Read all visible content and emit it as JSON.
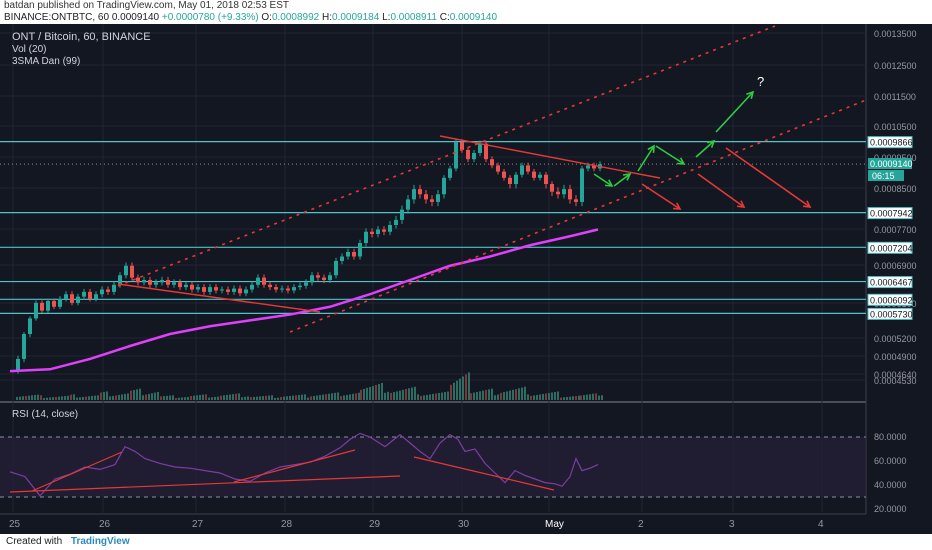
{
  "header": {
    "publisher_line": "batdan published on TradingView.com, May 01, 2018 02:53 EST",
    "symbol": "BINANCE:ONTBTC, 60",
    "last": "0.0009140",
    "change": "+0.0000780 (+9.33%)",
    "ohlc": {
      "o_label": "O:",
      "o": "0.0008992",
      "h_label": "H:",
      "h": "0.0009184",
      "l_label": "L:",
      "l": "0.0008911",
      "c_label": "C:",
      "c": "0.0009140"
    }
  },
  "legend": {
    "title": "ONT / Bitcoin, 60, BINANCE",
    "vol": "Vol (20)",
    "sma": "3SMA Dan (99)",
    "rsi": "RSI (14, close)"
  },
  "footer": {
    "created_with": "Created with",
    "brand": "TradingView"
  },
  "colors": {
    "background": "#131722",
    "up": "#26a69a",
    "down": "#ef5350",
    "sma": "#e040fb",
    "hline": "#4fc3c7",
    "rsi": "#7b3fa0",
    "trend": "#e53935",
    "green_arrow": "#2ecc40",
    "red_arrow": "#e53935"
  },
  "chart_data": {
    "type": "candlestick",
    "x_axis": {
      "ticks": [
        "25",
        "26",
        "27",
        "28",
        "29",
        "30",
        "May",
        "2",
        "3",
        "4"
      ]
    },
    "price_axis": {
      "ticks": [
        "0.0013500",
        "0.0012500",
        "0.0011500",
        "0.0010500",
        "0.0009500",
        "0.0008500",
        "0.0007700",
        "0.0006900",
        "0.0006100",
        "0.0005200",
        "0.0004900",
        "0.0004640",
        "0.0004530"
      ],
      "levels": [
        "0.0009866",
        "0.0007942",
        "0.0007204",
        "0.0006467",
        "0.0006092",
        "0.0005730"
      ],
      "last_price": "0.0009140",
      "countdown": "06:15"
    },
    "rsi_axis": {
      "ticks": [
        "80.0000",
        "60.0000",
        "40.0000",
        "20.0000"
      ]
    },
    "annotation": "?",
    "price_series": [
      [
        0,
        0.000462
      ],
      [
        6,
        0.00048
      ],
      [
        12,
        0.00052
      ],
      [
        18,
        0.00056
      ],
      [
        24,
        0.0006
      ],
      [
        30,
        0.00058
      ],
      [
        36,
        0.000605
      ],
      [
        42,
        0.00059
      ],
      [
        48,
        0.00061
      ],
      [
        54,
        0.00062
      ],
      [
        60,
        0.0006
      ],
      [
        66,
        0.000615
      ],
      [
        72,
        0.000625
      ],
      [
        78,
        0.00061
      ],
      [
        84,
        0.00062
      ],
      [
        90,
        0.00063
      ],
      [
        96,
        0.000625
      ],
      [
        102,
        0.00064
      ],
      [
        108,
        0.00066
      ],
      [
        114,
        0.00068
      ],
      [
        120,
        0.000655
      ],
      [
        126,
        0.000645
      ],
      [
        132,
        0.00065
      ],
      [
        138,
        0.00064
      ],
      [
        144,
        0.000645
      ],
      [
        150,
        0.00065
      ],
      [
        156,
        0.00064
      ],
      [
        162,
        0.000645
      ],
      [
        168,
        0.000635
      ],
      [
        174,
        0.00064
      ],
      [
        180,
        0.00063
      ],
      [
        186,
        0.000635
      ],
      [
        192,
        0.000625
      ],
      [
        198,
        0.000635
      ],
      [
        204,
        0.000628
      ],
      [
        210,
        0.00063
      ],
      [
        216,
        0.000625
      ],
      [
        222,
        0.000632
      ],
      [
        228,
        0.000622
      ],
      [
        234,
        0.00063
      ],
      [
        240,
        0.00064
      ],
      [
        246,
        0.000655
      ],
      [
        252,
        0.00064
      ],
      [
        258,
        0.000635
      ],
      [
        264,
        0.00063
      ],
      [
        270,
        0.000632
      ],
      [
        276,
        0.000628
      ],
      [
        282,
        0.000635
      ],
      [
        288,
        0.000638
      ],
      [
        294,
        0.000645
      ],
      [
        300,
        0.00066
      ],
      [
        306,
        0.000655
      ],
      [
        312,
        0.00065
      ],
      [
        318,
        0.00066
      ],
      [
        324,
        0.00069
      ],
      [
        330,
        0.0007
      ],
      [
        336,
        0.00071
      ],
      [
        342,
        0.0007
      ],
      [
        348,
        0.00073
      ],
      [
        354,
        0.000755
      ],
      [
        360,
        0.00075
      ],
      [
        366,
        0.00076
      ],
      [
        372,
        0.000755
      ],
      [
        378,
        0.00077
      ],
      [
        384,
        0.00078
      ],
      [
        390,
        0.0008
      ],
      [
        396,
        0.00082
      ],
      [
        402,
        0.00084
      ],
      [
        408,
        0.00083
      ],
      [
        414,
        0.00082
      ],
      [
        420,
        0.000815
      ],
      [
        426,
        0.00083
      ],
      [
        432,
        0.00087
      ],
      [
        438,
        0.0009
      ],
      [
        444,
        0.000985
      ],
      [
        450,
        0.00096
      ],
      [
        456,
        0.00093
      ],
      [
        462,
        0.00095
      ],
      [
        468,
        0.00098
      ],
      [
        474,
        0.00093
      ],
      [
        480,
        0.00091
      ],
      [
        486,
        0.00089
      ],
      [
        492,
        0.00087
      ],
      [
        498,
        0.00085
      ],
      [
        504,
        0.00088
      ],
      [
        510,
        0.00091
      ],
      [
        516,
        0.00089
      ],
      [
        522,
        0.00087
      ],
      [
        528,
        0.00088
      ],
      [
        534,
        0.00085
      ],
      [
        540,
        0.000835
      ],
      [
        546,
        0.00083
      ],
      [
        552,
        0.00084
      ],
      [
        558,
        0.00082
      ],
      [
        564,
        0.000815
      ],
      [
        570,
        0.0009
      ],
      [
        576,
        0.00091
      ],
      [
        582,
        0.0009
      ],
      [
        588,
        0.000914
      ]
    ],
    "sma_series": [
      [
        0,
        0.000462
      ],
      [
        40,
        0.000465
      ],
      [
        80,
        0.00048
      ],
      [
        120,
        0.0005
      ],
      [
        160,
        0.00052
      ],
      [
        200,
        0.00054
      ],
      [
        240,
        0.000555
      ],
      [
        280,
        0.00057
      ],
      [
        320,
        0.00059
      ],
      [
        360,
        0.00062
      ],
      [
        400,
        0.00065
      ],
      [
        440,
        0.00068
      ],
      [
        480,
        0.0007
      ],
      [
        520,
        0.000725
      ],
      [
        560,
        0.000745
      ],
      [
        588,
        0.00076
      ]
    ],
    "rsi_series": [
      [
        0,
        51
      ],
      [
        15,
        47
      ],
      [
        30,
        31
      ],
      [
        45,
        45
      ],
      [
        60,
        49
      ],
      [
        75,
        55
      ],
      [
        90,
        53
      ],
      [
        105,
        57
      ],
      [
        115,
        72
      ],
      [
        125,
        68
      ],
      [
        135,
        62
      ],
      [
        150,
        58
      ],
      [
        165,
        55
      ],
      [
        180,
        54
      ],
      [
        195,
        52
      ],
      [
        210,
        50
      ],
      [
        225,
        45
      ],
      [
        240,
        43
      ],
      [
        255,
        50
      ],
      [
        270,
        55
      ],
      [
        285,
        57
      ],
      [
        300,
        59
      ],
      [
        315,
        64
      ],
      [
        330,
        71
      ],
      [
        340,
        78
      ],
      [
        350,
        83
      ],
      [
        360,
        80
      ],
      [
        375,
        72
      ],
      [
        390,
        82
      ],
      [
        400,
        75
      ],
      [
        410,
        68
      ],
      [
        420,
        62
      ],
      [
        430,
        75
      ],
      [
        440,
        82
      ],
      [
        448,
        78
      ],
      [
        455,
        68
      ],
      [
        465,
        70
      ],
      [
        475,
        58
      ],
      [
        485,
        50
      ],
      [
        495,
        42
      ],
      [
        505,
        52
      ],
      [
        515,
        48
      ],
      [
        525,
        45
      ],
      [
        535,
        42
      ],
      [
        545,
        41
      ],
      [
        552,
        39
      ],
      [
        560,
        47
      ],
      [
        566,
        62
      ],
      [
        572,
        52
      ],
      [
        580,
        54
      ],
      [
        588,
        57
      ]
    ],
    "volume_series": [
      [
        6,
        6
      ],
      [
        30,
        5
      ],
      [
        60,
        6
      ],
      [
        90,
        9
      ],
      [
        120,
        12
      ],
      [
        150,
        5
      ],
      [
        180,
        6
      ],
      [
        210,
        7
      ],
      [
        240,
        5
      ],
      [
        270,
        6
      ],
      [
        300,
        8
      ],
      [
        330,
        10
      ],
      [
        350,
        18
      ],
      [
        380,
        14
      ],
      [
        410,
        9
      ],
      [
        440,
        38
      ],
      [
        460,
        12
      ],
      [
        490,
        14
      ],
      [
        520,
        9
      ],
      [
        550,
        6
      ],
      [
        570,
        8
      ],
      [
        588,
        5
      ]
    ]
  }
}
